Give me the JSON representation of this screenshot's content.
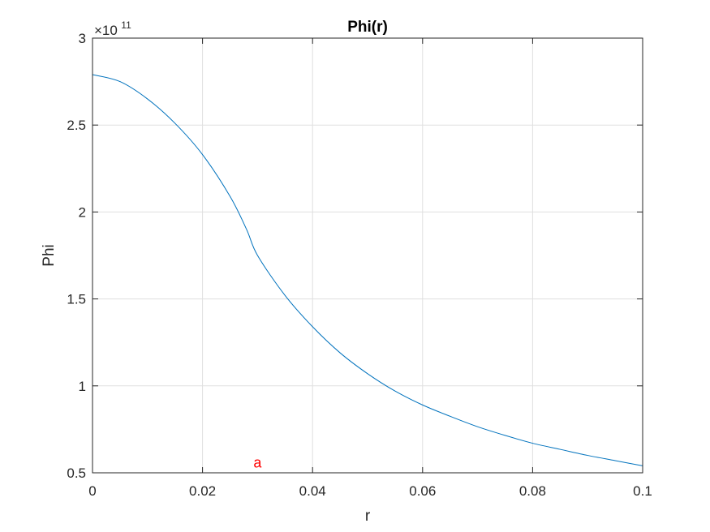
{
  "chart_data": {
    "type": "line",
    "title": "Phi(r)",
    "xlabel": "r",
    "ylabel": "Phi",
    "xlim": [
      0,
      0.1
    ],
    "ylim": [
      0.5,
      3
    ],
    "y_exponent_times": "×10",
    "y_exponent_power": "11",
    "grid": true,
    "xticks": [
      0,
      0.02,
      0.04,
      0.06,
      0.08,
      0.1
    ],
    "xtick_labels": [
      "0",
      "0.02",
      "0.04",
      "0.06",
      "0.08",
      "0.1"
    ],
    "yticks": [
      0.5,
      1,
      1.5,
      2,
      2.5,
      3
    ],
    "ytick_labels": [
      "0.5",
      "1",
      "1.5",
      "2",
      "2.5",
      "3"
    ],
    "series": [
      {
        "color": "#0072BD",
        "x": [
          0,
          0.005,
          0.01,
          0.015,
          0.02,
          0.025,
          0.028,
          0.03,
          0.035,
          0.04,
          0.045,
          0.05,
          0.055,
          0.06,
          0.065,
          0.07,
          0.075,
          0.08,
          0.085,
          0.09,
          0.095,
          0.1
        ],
        "y": [
          2.79,
          2.75,
          2.65,
          2.51,
          2.33,
          2.09,
          1.9,
          1.75,
          1.52,
          1.34,
          1.19,
          1.07,
          0.97,
          0.89,
          0.825,
          0.765,
          0.715,
          0.67,
          0.635,
          0.6,
          0.57,
          0.54
        ]
      }
    ],
    "annotations": [
      {
        "text": "a",
        "x": 0.03,
        "y": 0.52,
        "color": "#FF0000"
      }
    ]
  }
}
